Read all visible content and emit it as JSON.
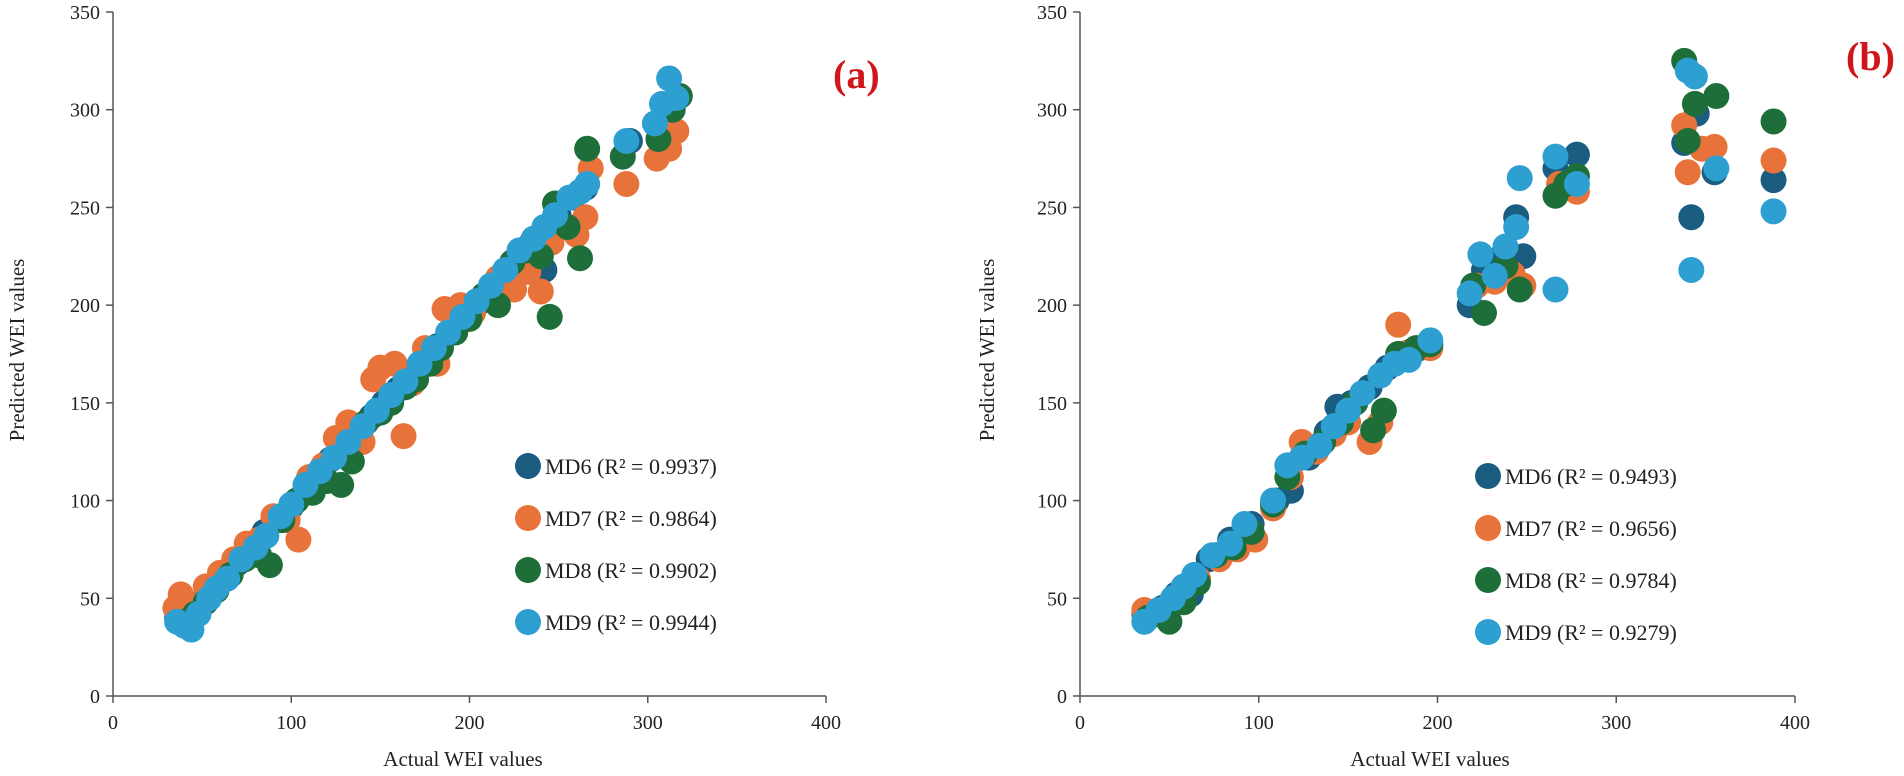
{
  "colors": {
    "MD6": "#1b5c81",
    "MD7": "#e8733a",
    "MD8": "#1e6e3a",
    "MD9": "#2e9fd1"
  },
  "chart_data": [
    {
      "type": "scatter",
      "tag": "(a)",
      "xlabel": "Actual WEI values",
      "ylabel": "Predicted WEI values",
      "xlim": [
        0,
        400
      ],
      "ylim": [
        0,
        350
      ],
      "xticks": [
        0,
        100,
        200,
        300,
        400
      ],
      "yticks": [
        0,
        50,
        100,
        150,
        200,
        250,
        300,
        350
      ],
      "legend_position": "bottom-right",
      "series": [
        {
          "key": "MD6",
          "label": "MD6 (R² = 0.9937)",
          "points": [
            [
              36,
              40
            ],
            [
              42,
              44
            ],
            [
              48,
              47
            ],
            [
              55,
              55
            ],
            [
              62,
              60
            ],
            [
              70,
              68
            ],
            [
              78,
              76
            ],
            [
              85,
              84
            ],
            [
              92,
              90
            ],
            [
              100,
              97
            ],
            [
              108,
              106
            ],
            [
              115,
              113
            ],
            [
              122,
              121
            ],
            [
              130,
              127
            ],
            [
              138,
              136
            ],
            [
              145,
              143
            ],
            [
              152,
              150
            ],
            [
              160,
              157
            ],
            [
              168,
              165
            ],
            [
              175,
              172
            ],
            [
              182,
              179
            ],
            [
              190,
              186
            ],
            [
              198,
              194
            ],
            [
              205,
              201
            ],
            [
              212,
              208
            ],
            [
              220,
              216
            ],
            [
              228,
              225
            ],
            [
              235,
              232
            ],
            [
              242,
              218
            ],
            [
              250,
              246
            ],
            [
              258,
              255
            ],
            [
              265,
              260
            ],
            [
              290,
              284
            ],
            [
              310,
              300
            ],
            [
              314,
              303
            ]
          ]
        },
        {
          "key": "MD7",
          "label": "MD7 (R² = 0.9864)",
          "points": [
            [
              35,
              45
            ],
            [
              38,
              52
            ],
            [
              45,
              46
            ],
            [
              52,
              56
            ],
            [
              60,
              63
            ],
            [
              68,
              70
            ],
            [
              75,
              78
            ],
            [
              82,
              80
            ],
            [
              90,
              92
            ],
            [
              98,
              90
            ],
            [
              104,
              80
            ],
            [
              110,
              112
            ],
            [
              118,
              118
            ],
            [
              125,
              132
            ],
            [
              132,
              140
            ],
            [
              140,
              130
            ],
            [
              146,
              162
            ],
            [
              150,
              168
            ],
            [
              158,
              170
            ],
            [
              163,
              133
            ],
            [
              168,
              160
            ],
            [
              175,
              178
            ],
            [
              182,
              170
            ],
            [
              186,
              198
            ],
            [
              195,
              200
            ],
            [
              202,
              196
            ],
            [
              210,
              205
            ],
            [
              216,
              214
            ],
            [
              225,
              208
            ],
            [
              233,
              217
            ],
            [
              240,
              207
            ],
            [
              246,
              232
            ],
            [
              252,
              240
            ],
            [
              260,
              236
            ],
            [
              265,
              245
            ],
            [
              268,
              270
            ],
            [
              288,
              262
            ],
            [
              305,
              275
            ],
            [
              312,
              280
            ],
            [
              316,
              289
            ]
          ]
        },
        {
          "key": "MD8",
          "label": "MD8 (R² = 0.9902)",
          "points": [
            [
              40,
              38
            ],
            [
              46,
              42
            ],
            [
              52,
              48
            ],
            [
              58,
              54
            ],
            [
              66,
              62
            ],
            [
              74,
              70
            ],
            [
              82,
              72
            ],
            [
              88,
              67
            ],
            [
              95,
              90
            ],
            [
              103,
              100
            ],
            [
              112,
              104
            ],
            [
              120,
              110
            ],
            [
              128,
              108
            ],
            [
              134,
              120
            ],
            [
              142,
              140
            ],
            [
              150,
              145
            ],
            [
              156,
              150
            ],
            [
              164,
              158
            ],
            [
              170,
              162
            ],
            [
              178,
              170
            ],
            [
              184,
              178
            ],
            [
              192,
              186
            ],
            [
              200,
              193
            ],
            [
              208,
              205
            ],
            [
              216,
              200
            ],
            [
              224,
              222
            ],
            [
              232,
              228
            ],
            [
              240,
              225
            ],
            [
              245,
              194
            ],
            [
              248,
              252
            ],
            [
              255,
              240
            ],
            [
              262,
              224
            ],
            [
              266,
              280
            ],
            [
              286,
              276
            ],
            [
              306,
              285
            ],
            [
              314,
              300
            ],
            [
              318,
              307
            ]
          ]
        },
        {
          "key": "MD9",
          "label": "MD9 (R² = 0.9944)",
          "points": [
            [
              36,
              38
            ],
            [
              40,
              36
            ],
            [
              44,
              34
            ],
            [
              48,
              42
            ],
            [
              54,
              50
            ],
            [
              58,
              55
            ],
            [
              64,
              60
            ],
            [
              72,
              70
            ],
            [
              80,
              76
            ],
            [
              86,
              82
            ],
            [
              94,
              92
            ],
            [
              100,
              98
            ],
            [
              108,
              108
            ],
            [
              116,
              115
            ],
            [
              124,
              122
            ],
            [
              132,
              130
            ],
            [
              140,
              138
            ],
            [
              148,
              146
            ],
            [
              156,
              154
            ],
            [
              164,
              161
            ],
            [
              172,
              170
            ],
            [
              180,
              178
            ],
            [
              188,
              186
            ],
            [
              196,
              194
            ],
            [
              204,
              202
            ],
            [
              212,
              210
            ],
            [
              220,
              218
            ],
            [
              228,
              228
            ],
            [
              236,
              234
            ],
            [
              242,
              240
            ],
            [
              248,
              246
            ],
            [
              256,
              255
            ],
            [
              262,
              258
            ],
            [
              266,
              262
            ],
            [
              288,
              284
            ],
            [
              304,
              293
            ],
            [
              308,
              303
            ],
            [
              312,
              316
            ],
            [
              316,
              306
            ]
          ]
        }
      ]
    },
    {
      "type": "scatter",
      "tag": "(b)",
      "xlabel": "Actual WEI values",
      "ylabel": "Predicted WEI values",
      "xlim": [
        0,
        400
      ],
      "ylim": [
        0,
        350
      ],
      "xticks": [
        0,
        100,
        200,
        300,
        400
      ],
      "yticks": [
        0,
        50,
        100,
        150,
        200,
        250,
        300,
        350
      ],
      "legend_position": "bottom-right",
      "series": [
        {
          "key": "MD6",
          "label": "MD6 (R² = 0.9493)",
          "points": [
            [
              36,
              42
            ],
            [
              46,
              45
            ],
            [
              54,
              52
            ],
            [
              62,
              52
            ],
            [
              72,
              70
            ],
            [
              84,
              80
            ],
            [
              96,
              88
            ],
            [
              110,
              100
            ],
            [
              118,
              105
            ],
            [
              128,
              122
            ],
            [
              138,
              135
            ],
            [
              144,
              148
            ],
            [
              152,
              150
            ],
            [
              162,
              158
            ],
            [
              172,
              168
            ],
            [
              180,
              175
            ],
            [
              190,
              178
            ],
            [
              218,
              200
            ],
            [
              226,
              218
            ],
            [
              236,
              225
            ],
            [
              244,
              245
            ],
            [
              248,
              225
            ],
            [
              266,
              270
            ],
            [
              278,
              277
            ],
            [
              338,
              283
            ],
            [
              342,
              245
            ],
            [
              345,
              298
            ],
            [
              355,
              268
            ],
            [
              388,
              264
            ]
          ]
        },
        {
          "key": "MD7",
          "label": "MD7 (R² = 0.9656)",
          "points": [
            [
              36,
              44
            ],
            [
              48,
              42
            ],
            [
              58,
              55
            ],
            [
              66,
              60
            ],
            [
              78,
              70
            ],
            [
              88,
              75
            ],
            [
              98,
              80
            ],
            [
              108,
              96
            ],
            [
              118,
              112
            ],
            [
              124,
              130
            ],
            [
              132,
              125
            ],
            [
              142,
              134
            ],
            [
              150,
              140
            ],
            [
              162,
              130
            ],
            [
              168,
              140
            ],
            [
              178,
              190
            ],
            [
              184,
              176
            ],
            [
              196,
              178
            ],
            [
              222,
              210
            ],
            [
              232,
              212
            ],
            [
              242,
              216
            ],
            [
              248,
              210
            ],
            [
              268,
              262
            ],
            [
              278,
              258
            ],
            [
              338,
              292
            ],
            [
              340,
              268
            ],
            [
              348,
              280
            ],
            [
              355,
              281
            ],
            [
              388,
              274
            ]
          ]
        },
        {
          "key": "MD8",
          "label": "MD8 (R² = 0.9784)",
          "points": [
            [
              38,
              40
            ],
            [
              50,
              38
            ],
            [
              58,
              48
            ],
            [
              66,
              58
            ],
            [
              76,
              72
            ],
            [
              86,
              76
            ],
            [
              96,
              84
            ],
            [
              108,
              98
            ],
            [
              116,
              112
            ],
            [
              126,
              124
            ],
            [
              136,
              130
            ],
            [
              146,
              140
            ],
            [
              154,
              150
            ],
            [
              164,
              136
            ],
            [
              170,
              146
            ],
            [
              178,
              175
            ],
            [
              188,
              178
            ],
            [
              196,
              180
            ],
            [
              220,
              210
            ],
            [
              226,
              196
            ],
            [
              238,
              220
            ],
            [
              246,
              208
            ],
            [
              266,
              256
            ],
            [
              272,
              262
            ],
            [
              278,
              266
            ],
            [
              338,
              325
            ],
            [
              340,
              284
            ],
            [
              344,
              303
            ],
            [
              356,
              307
            ],
            [
              388,
              294
            ]
          ]
        },
        {
          "key": "MD9",
          "label": "MD9 (R² = 0.9279)",
          "points": [
            [
              36,
              38
            ],
            [
              44,
              44
            ],
            [
              52,
              50
            ],
            [
              58,
              56
            ],
            [
              64,
              62
            ],
            [
              74,
              72
            ],
            [
              84,
              78
            ],
            [
              92,
              88
            ],
            [
              108,
              100
            ],
            [
              116,
              118
            ],
            [
              124,
              122
            ],
            [
              134,
              128
            ],
            [
              142,
              138
            ],
            [
              150,
              146
            ],
            [
              158,
              155
            ],
            [
              168,
              164
            ],
            [
              176,
              170
            ],
            [
              184,
              172
            ],
            [
              196,
              182
            ],
            [
              218,
              206
            ],
            [
              224,
              226
            ],
            [
              232,
              215
            ],
            [
              238,
              230
            ],
            [
              244,
              240
            ],
            [
              246,
              265
            ],
            [
              266,
              208
            ],
            [
              266,
              276
            ],
            [
              278,
              262
            ],
            [
              340,
              320
            ],
            [
              342,
              218
            ],
            [
              344,
              317
            ],
            [
              356,
              270
            ],
            [
              388,
              248
            ]
          ]
        }
      ]
    }
  ]
}
